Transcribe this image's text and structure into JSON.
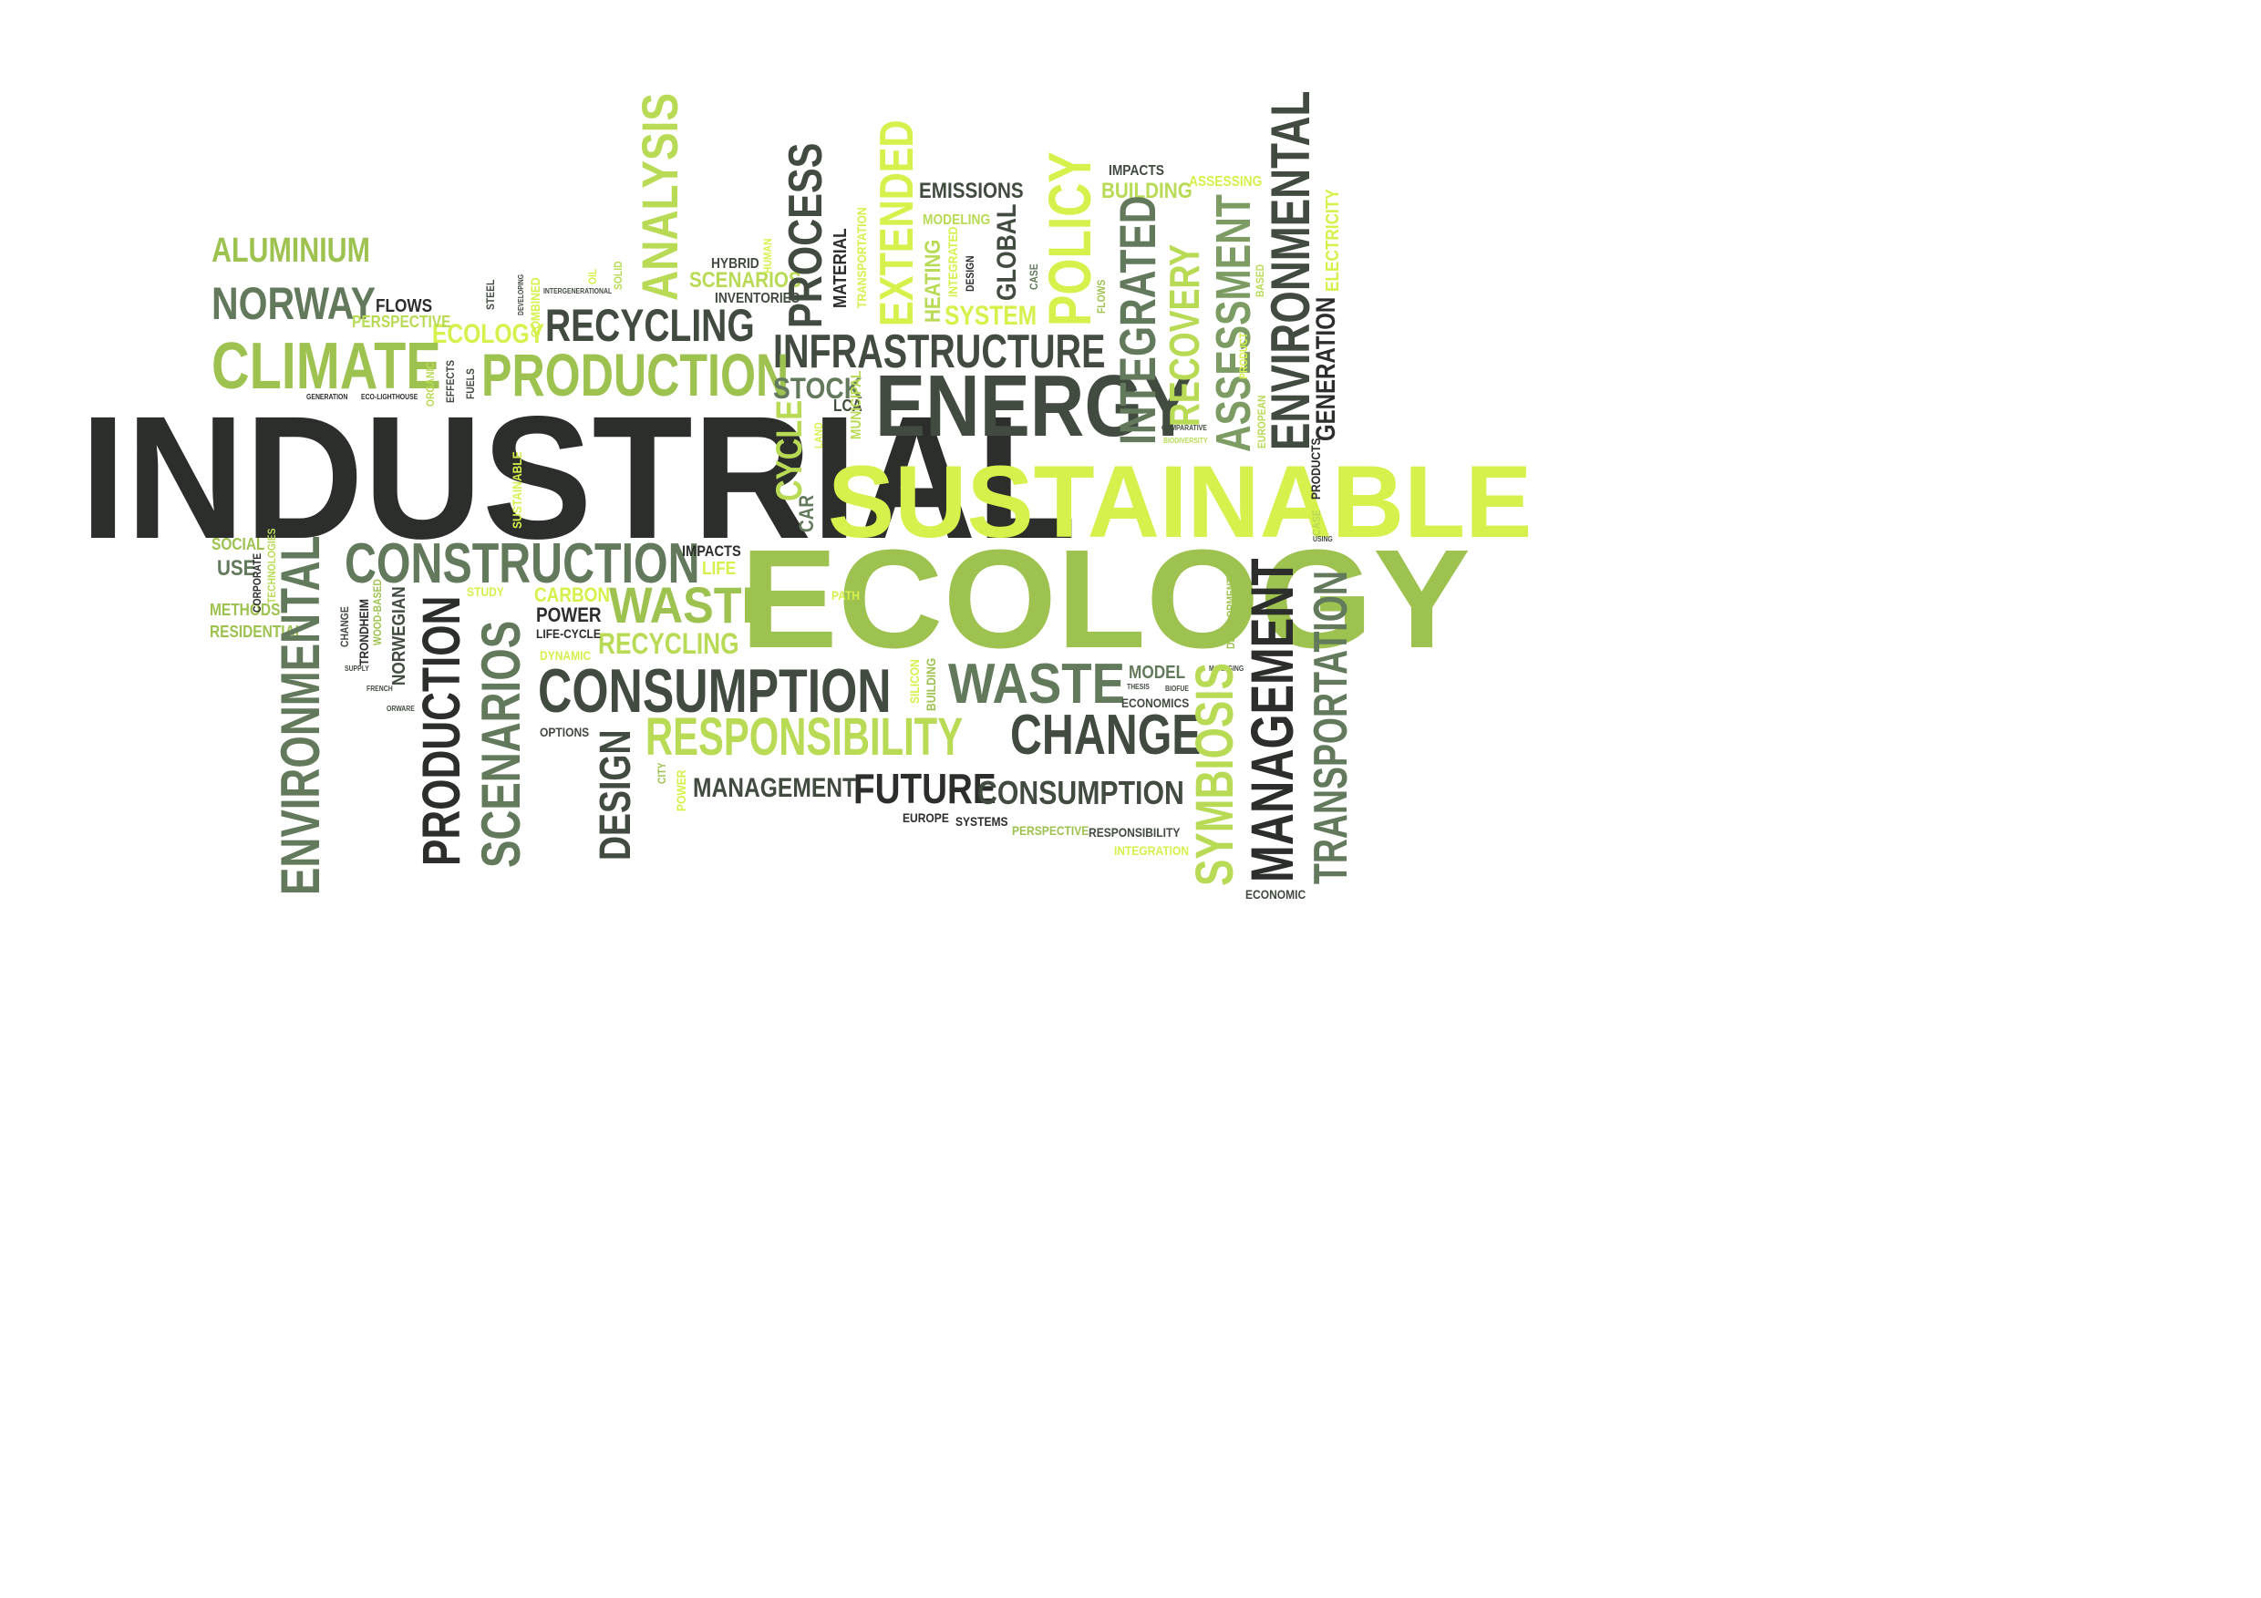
{
  "palette": {
    "dark": "#2b2e2b",
    "darkgreen": "#414b40",
    "midgreen": "#627a5b",
    "sage": "#7c9c64",
    "green": "#9ec24f",
    "lightgreen": "#b8da55",
    "lime": "#d6f04c"
  },
  "words": [
    {
      "text": "INDUSTRIAL",
      "color": "dark"
    },
    {
      "text": "SUSTAINABLE",
      "color": "lime"
    },
    {
      "text": "ECOLOGY",
      "color": "green"
    },
    {
      "text": "ENERGY",
      "color": "darkgreen"
    },
    {
      "text": "INFRASTRUCTURE",
      "color": "darkgreen"
    },
    {
      "text": "PRODUCTION",
      "color": "green"
    },
    {
      "text": "RECYCLING",
      "color": "darkgreen"
    },
    {
      "text": "CLIMATE",
      "color": "green"
    },
    {
      "text": "NORWAY",
      "color": "midgreen"
    },
    {
      "text": "ALUMINIUM",
      "color": "green"
    },
    {
      "text": "CONSTRUCTION",
      "color": "midgreen"
    },
    {
      "text": "CONSUMPTION",
      "color": "darkgreen"
    },
    {
      "text": "RESPONSIBILITY",
      "color": "lightgreen"
    },
    {
      "text": "CHANGE",
      "color": "darkgreen"
    },
    {
      "text": "WASTE",
      "color": "midgreen"
    },
    {
      "text": "WASTE",
      "color": "green"
    },
    {
      "text": "FUTURE",
      "color": "dark"
    },
    {
      "text": "CONSUMPTION",
      "color": "darkgreen"
    },
    {
      "text": "MANAGEMENT",
      "color": "darkgreen"
    },
    {
      "text": "RECYCLING",
      "color": "lightgreen"
    },
    {
      "text": "POWER",
      "color": "dark"
    },
    {
      "text": "CARBON",
      "color": "lime"
    },
    {
      "text": "LIFE",
      "color": "lime"
    },
    {
      "text": "IMPACTS",
      "color": "dark"
    },
    {
      "text": "STOCK",
      "color": "midgreen"
    },
    {
      "text": "EMISSIONS",
      "color": "darkgreen"
    },
    {
      "text": "BUILDING",
      "color": "lightgreen"
    },
    {
      "text": "IMPACTS",
      "color": "darkgreen"
    },
    {
      "text": "ASSESSING",
      "color": "lime"
    },
    {
      "text": "SYSTEM",
      "color": "lime"
    },
    {
      "text": "MODELING",
      "color": "lightgreen"
    },
    {
      "text": "SCENARIOS",
      "color": "lightgreen"
    },
    {
      "text": "INVENTORIES",
      "color": "darkgreen"
    },
    {
      "text": "HYBRID",
      "color": "darkgreen"
    },
    {
      "text": "ECOLOGY",
      "color": "lime"
    },
    {
      "text": "FLOWS",
      "color": "dark"
    },
    {
      "text": "PERSPECTIVE",
      "color": "lightgreen"
    },
    {
      "text": "SOCIAL",
      "color": "green"
    },
    {
      "text": "USE",
      "color": "midgreen"
    },
    {
      "text": "METHODS",
      "color": "green"
    },
    {
      "text": "RESIDENTIAL",
      "color": "green"
    },
    {
      "text": "STUDY",
      "color": "lime"
    },
    {
      "text": "LIFE-CYCLE",
      "color": "dark"
    },
    {
      "text": "DYNAMIC",
      "color": "lime"
    },
    {
      "text": "OPTIONS",
      "color": "darkgreen"
    },
    {
      "text": "PATH",
      "color": "lime"
    },
    {
      "text": "EUROPE",
      "color": "dark"
    },
    {
      "text": "SYSTEMS",
      "color": "dark"
    },
    {
      "text": "PERSPECTIVE",
      "color": "green"
    },
    {
      "text": "RESPONSIBILITY",
      "color": "darkgreen"
    },
    {
      "text": "INTEGRATION",
      "color": "lime"
    },
    {
      "text": "ECONOMICS",
      "color": "darkgreen"
    },
    {
      "text": "MODEL",
      "color": "midgreen"
    },
    {
      "text": "ECONOMIC",
      "color": "darkgreen"
    },
    {
      "text": "LCA",
      "color": "darkgreen"
    },
    {
      "text": "GENERATION",
      "color": "dark"
    },
    {
      "text": "ECO-LIGHTHOUSE",
      "color": "dark"
    },
    {
      "text": "FRENCH",
      "color": "darkgreen"
    },
    {
      "text": "SUPPLY",
      "color": "darkgreen"
    },
    {
      "text": "ORWARE",
      "color": "darkgreen"
    },
    {
      "text": "THESIS",
      "color": "darkgreen"
    },
    {
      "text": "BIOFUE",
      "color": "darkgreen"
    },
    {
      "text": "MANAGING",
      "color": "darkgreen"
    },
    {
      "text": "USING",
      "color": "darkgreen"
    },
    {
      "text": "INTERGENERATIONAL",
      "color": "darkgreen"
    },
    {
      "text": "GENERATION",
      "color": "dark"
    },
    {
      "text": "COMPARATIVE",
      "color": "darkgreen"
    },
    {
      "text": "BIODIVERSITY",
      "color": "lightgreen"
    },
    {
      "text": "ANALYSIS",
      "color": "lightgreen"
    },
    {
      "text": "PROCESS",
      "color": "darkgreen"
    },
    {
      "text": "EXTENDED",
      "color": "lime"
    },
    {
      "text": "POLICY",
      "color": "lime"
    },
    {
      "text": "INTEGRATED",
      "color": "midgreen"
    },
    {
      "text": "RECOVERY",
      "color": "lightgreen"
    },
    {
      "text": "ASSESSMENT",
      "color": "sage"
    },
    {
      "text": "ENVIRONMENTAL",
      "color": "darkgreen"
    },
    {
      "text": "ELECTRICITY",
      "color": "lime"
    },
    {
      "text": "MATERIAL",
      "color": "dark"
    },
    {
      "text": "TRANSPORTATION",
      "color": "lime"
    },
    {
      "text": "HEATING",
      "color": "lightgreen"
    },
    {
      "text": "INTEGRATED",
      "color": "lime"
    },
    {
      "text": "GLOBAL",
      "color": "darkgreen"
    },
    {
      "text": "DESIGN",
      "color": "dark"
    },
    {
      "text": "CASE",
      "color": "midgreen"
    },
    {
      "text": "FLOWS",
      "color": "green"
    },
    {
      "text": "HUMAN",
      "color": "lime"
    },
    {
      "text": "COMBINED",
      "color": "lime"
    },
    {
      "text": "STEEL",
      "color": "darkgreen"
    },
    {
      "text": "SOLID",
      "color": "lightgreen"
    },
    {
      "text": "OIL",
      "color": "lime"
    },
    {
      "text": "DEVELOPING",
      "color": "darkgreen"
    },
    {
      "text": "FUELS",
      "color": "darkgreen"
    },
    {
      "text": "EFFECTS",
      "color": "darkgreen"
    },
    {
      "text": "ORGANIC",
      "color": "lightgreen"
    },
    {
      "text": "CYCLE",
      "color": "lightgreen"
    },
    {
      "text": "CAR",
      "color": "midgreen"
    },
    {
      "text": "LAND",
      "color": "lime"
    },
    {
      "text": "MUNICIPAL",
      "color": "lightgreen"
    },
    {
      "text": "EUROPEAN",
      "color": "lightgreen"
    },
    {
      "text": "PRODUCT",
      "color": "lime"
    },
    {
      "text": "BASED",
      "color": "lightgreen"
    },
    {
      "text": "SUSTAINABLE",
      "color": "lime"
    },
    {
      "text": "CORPORATE",
      "color": "dark"
    },
    {
      "text": "TECHNOLOGIES",
      "color": "lightgreen"
    },
    {
      "text": "ENVIRONMENTAL",
      "color": "midgreen"
    },
    {
      "text": "CHANGE",
      "color": "darkgreen"
    },
    {
      "text": "TRONDHEIM",
      "color": "dark"
    },
    {
      "text": "WOOD-BASED",
      "color": "green"
    },
    {
      "text": "NORWEGIAN",
      "color": "darkgreen"
    },
    {
      "text": "PRODUCTION",
      "color": "dark"
    },
    {
      "text": "SCENARIOS",
      "color": "midgreen"
    },
    {
      "text": "DESIGN",
      "color": "darkgreen"
    },
    {
      "text": "CITY",
      "color": "green"
    },
    {
      "text": "POWER",
      "color": "lime"
    },
    {
      "text": "SILICON",
      "color": "lime"
    },
    {
      "text": "BUILDING",
      "color": "green"
    },
    {
      "text": "SYMBIOSIS",
      "color": "lightgreen"
    },
    {
      "text": "MANAGEMENT",
      "color": "dark"
    },
    {
      "text": "TRANSPORTATION",
      "color": "midgreen"
    },
    {
      "text": "DEVELOPMENT",
      "color": "green"
    },
    {
      "text": "CASE",
      "color": "lightgreen"
    },
    {
      "text": "PRODUCTS",
      "color": "dark"
    }
  ]
}
